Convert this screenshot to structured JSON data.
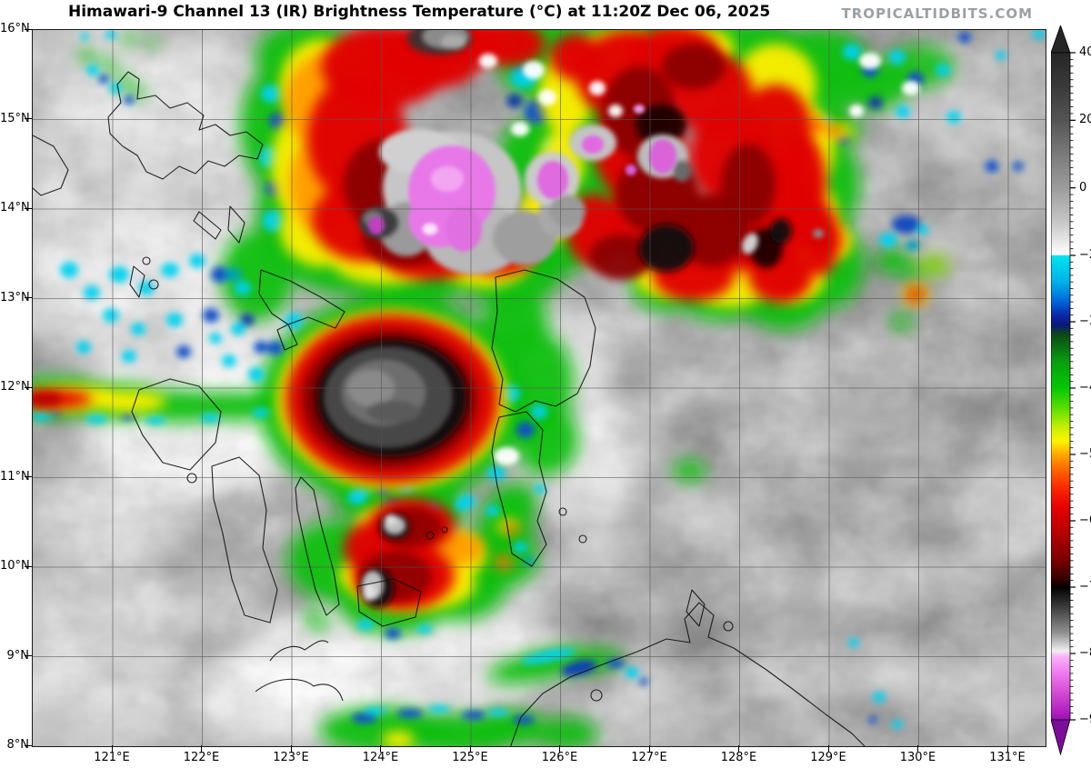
{
  "header": {
    "title": "Himawari-9 Channel 13 (IR) Brightness Temperature (°C) at 11:20Z Dec 06, 2025",
    "watermark": "TROPICALTIDBITS.COM"
  },
  "axes": {
    "lat_labels": [
      "16°N",
      "15°N",
      "14°N",
      "13°N",
      "12°N",
      "11°N",
      "10°N",
      "9°N",
      "8°N"
    ],
    "lon_labels": [
      "121°E",
      "122°E",
      "123°E",
      "124°E",
      "125°E",
      "126°E",
      "127°E",
      "128°E",
      "129°E",
      "130°E",
      "131°E"
    ]
  },
  "colorbar": {
    "tick_values": [
      40,
      20,
      0,
      -20,
      -30,
      -40,
      -50,
      -60,
      -70,
      -80,
      -90
    ],
    "tick_labels": [
      "40",
      "20",
      "0",
      "−20",
      "−30",
      "−40",
      "−50",
      "−60",
      "−70",
      "−80",
      "−90"
    ],
    "arrow_top_color": "#262626",
    "arrow_bottom_color": "#7c0c9c",
    "gradient": [
      [
        40,
        "#262626"
      ],
      [
        30,
        "#3a3a3a"
      ],
      [
        20,
        "#555555"
      ],
      [
        10,
        "#7a7a7a"
      ],
      [
        0,
        "#9c9c9c"
      ],
      [
        -10,
        "#c6c6c6"
      ],
      [
        -17,
        "#eeeeee"
      ],
      [
        -19.9,
        "#ffffff"
      ],
      [
        -20,
        "#00e6f0"
      ],
      [
        -24,
        "#00b0e8"
      ],
      [
        -27,
        "#0064d8"
      ],
      [
        -29,
        "#0a28a8"
      ],
      [
        -30.5,
        "#0a1878"
      ],
      [
        -32,
        "#0c4a14"
      ],
      [
        -36,
        "#089e10"
      ],
      [
        -40,
        "#04c804"
      ],
      [
        -43,
        "#5ade00"
      ],
      [
        -46,
        "#c8f000"
      ],
      [
        -48,
        "#fef400"
      ],
      [
        -50,
        "#ffa800"
      ],
      [
        -52.5,
        "#ff6000"
      ],
      [
        -55,
        "#fb2800"
      ],
      [
        -58,
        "#e60000"
      ],
      [
        -62,
        "#b40000"
      ],
      [
        -66,
        "#780000"
      ],
      [
        -69,
        "#2e0000"
      ],
      [
        -70,
        "#000000"
      ],
      [
        -73,
        "#3c3c3c"
      ],
      [
        -77,
        "#949494"
      ],
      [
        -79.6,
        "#efefef"
      ],
      [
        -80.4,
        "#fab4fa"
      ],
      [
        -83,
        "#f078f0"
      ],
      [
        -86,
        "#d24ad2"
      ],
      [
        -89,
        "#b01cc0"
      ],
      [
        -90,
        "#9a10b4"
      ]
    ]
  },
  "map_content": {
    "type": "satellite-ir-map",
    "region": "Philippines and surrounding seas, approx 120.1°E–131.4°E, 8°N–16°N",
    "features": [
      {
        "name": "large convective complex",
        "area": "13.3°N–16°N, 123°E–129.5°E",
        "detail": "widespread cloud tops colder than −60°C with magenta overshooting tops below −80°C near 14.2°N/124.6°E (largest), 14.3°N/125.8°E, 14.45°N/126.3°E, 14.3°N/127.1°E and 13.9°N/123.9°E"
      },
      {
        "name": "ring-enhanced storm cell",
        "area": "11.3°N–12.8°N, 123°E–125.3°E",
        "detail": "cold ring −55 to −70°C surrounding warmer gray center over Masbate/Visayas"
      },
      {
        "name": "southern convective cluster",
        "area": "9.3°N–10.8°N, 123.8°E–125.4°E",
        "detail": "two cores colder than −70°C over Bohol/Camotes region"
      },
      {
        "name": "convective band on 12°N",
        "area": "west of 121.8°E along 12°N",
        "detail": "east-west band, core colder than −60°C at map edge"
      },
      {
        "name": "cold band along 8°N",
        "area": "123.5°E–126.5°E near bottom edge",
        "detail": "−40 to −50°C tops with cyan/blue fringe"
      },
      {
        "name": "scattered small cells",
        "area": "12.9°N–14.7°N, 128°E–130.4°E",
        "detail": "isolated −40 to −60°C cells amid gray low cloud"
      },
      {
        "name": "speckled shallow convection",
        "area": "12.5°N–14°N, 121°E–123°E",
        "detail": "−20 to −35°C cyan/blue speckles over white cloud"
      }
    ]
  }
}
